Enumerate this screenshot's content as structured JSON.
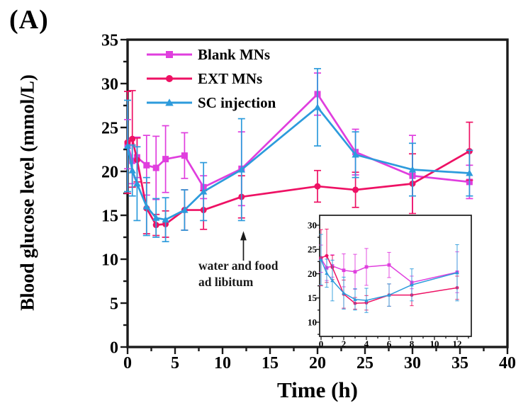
{
  "panel_label": "(A)",
  "figure": {
    "background": "#ffffff",
    "axis_color": "#1a1a1a"
  },
  "annotation": {
    "line1": "water and food",
    "line2": "ad libitum"
  },
  "chart_data": {
    "type": "line",
    "title": "",
    "xlabel": "Time (h)",
    "ylabel": "Blood glucose level (mmol/L)",
    "xlim": [
      0,
      40
    ],
    "ylim": [
      0,
      35
    ],
    "x_ticks": [
      0,
      5,
      10,
      15,
      20,
      25,
      30,
      35,
      40
    ],
    "y_ticks": [
      0,
      5,
      10,
      15,
      20,
      25,
      30,
      35
    ],
    "grid": false,
    "legend_position": "top-left",
    "x": [
      0,
      0.5,
      1,
      2,
      3,
      4,
      6,
      8,
      12,
      20,
      24,
      30,
      36
    ],
    "series": [
      {
        "name": "Blank MNs",
        "marker": "square",
        "color": "#E03EDE",
        "values": [
          23.1,
          21.2,
          21.6,
          20.7,
          20.4,
          21.4,
          21.8,
          18.2,
          20.3,
          28.8,
          22.2,
          19.5,
          18.8
        ],
        "errors": [
          2.8,
          2.6,
          2.3,
          3.4,
          3.6,
          3.8,
          2.6,
          1.3,
          4.2,
          2.4,
          2.6,
          4.6,
          1.9
        ]
      },
      {
        "name": "EXT MNs",
        "marker": "circle",
        "color": "#EE1164",
        "values": [
          23.3,
          23.7,
          21.3,
          15.8,
          13.9,
          14.0,
          15.6,
          15.6,
          17.1,
          18.3,
          17.9,
          18.6,
          22.3
        ],
        "errors": [
          5.8,
          5.5,
          2.5,
          2.9,
          1.2,
          1.5,
          2.3,
          2.2,
          2.4,
          1.8,
          2.0,
          3.4,
          3.3
        ]
      },
      {
        "name": "SC injection",
        "marker": "triangle",
        "color": "#2D9BDC",
        "values": [
          22.9,
          20.1,
          18.6,
          16.0,
          14.7,
          14.5,
          15.6,
          17.7,
          20.2,
          27.3,
          21.9,
          20.2,
          19.8
        ],
        "errors": [
          5.2,
          2.9,
          4.2,
          3.3,
          2.2,
          2.5,
          2.3,
          3.3,
          5.8,
          4.4,
          2.6,
          3.0,
          2.6
        ]
      }
    ],
    "annotation_arrow": {
      "x": 12.2,
      "points_to_y": 13.2
    },
    "inset": {
      "x_range_hours": [
        0,
        12
      ],
      "x_ticks": [
        0,
        2,
        4,
        6,
        8,
        10,
        12
      ],
      "y_ticks": [
        10,
        15,
        20,
        25,
        30
      ]
    }
  }
}
